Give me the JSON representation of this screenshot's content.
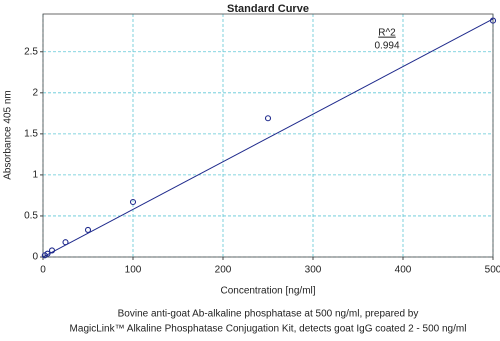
{
  "chart_data": {
    "type": "scatter",
    "title": "Standard Curve",
    "x_label": "Concentration  [ng/ml]",
    "y_label": "Absorbance 405 nm",
    "annotation_title": "R^2",
    "annotation_value": "0.994",
    "caption": [
      "Bovine anti-goat Ab-alkaline phosphatase at 500 ng/ml, prepared by",
      "MagicLink™ Alkaline Phosphatase Conjugation Kit, detects goat IgG coated 2 - 500 ng/ml"
    ],
    "x": [
      2,
      5,
      10,
      25,
      50,
      100,
      250,
      500
    ],
    "values": [
      0.02,
      0.04,
      0.08,
      0.18,
      0.33,
      0.67,
      1.69,
      2.88
    ],
    "color": "#1f2a8c",
    "fit": {
      "x": [
        0,
        500
      ],
      "y": [
        0,
        2.9
      ],
      "color": "#1f2a8c"
    },
    "xlim": [
      0,
      500
    ],
    "xticks": [
      0,
      100,
      200,
      300,
      400,
      500
    ],
    "ylim": [
      0,
      2.96
    ],
    "yticks": [
      0,
      0.5,
      1,
      1.5,
      2,
      2.5
    ],
    "grid": true
  }
}
